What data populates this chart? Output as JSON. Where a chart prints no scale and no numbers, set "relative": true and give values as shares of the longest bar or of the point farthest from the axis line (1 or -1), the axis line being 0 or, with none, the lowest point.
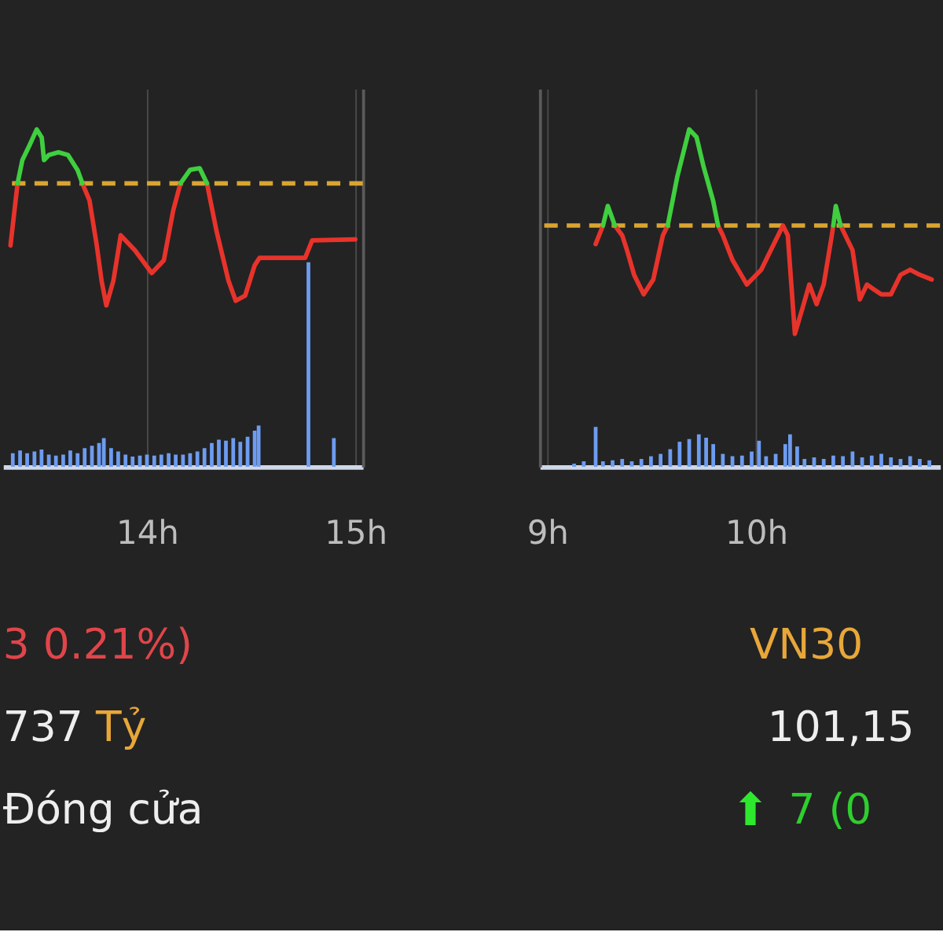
{
  "chart_data": [
    {
      "type": "line",
      "relative": true,
      "grid": "x",
      "tick_labels": "x",
      "x": [
        13.345,
        13.379,
        13.402,
        13.437,
        13.471,
        13.495,
        13.506,
        13.529,
        13.575,
        13.621,
        13.667,
        13.69,
        13.724,
        13.759,
        13.782,
        13.805,
        13.839,
        13.874,
        13.943,
        14.023,
        14.081,
        14.126,
        14.161,
        14.207,
        14.253,
        14.288,
        14.333,
        14.391,
        14.426,
        14.471,
        14.517,
        14.54,
        14.759,
        14.793,
        15.0
      ],
      "xlim": [
        13.345,
        15.0
      ],
      "xticks": [
        {
          "value": 14,
          "label": "14h"
        },
        {
          "value": 15,
          "label": "15h"
        }
      ],
      "series": [
        {
          "color": "#e8332b",
          "values": [
            0.656,
            0.84,
            null,
            null,
            null,
            null,
            null,
            null,
            null,
            null,
            null,
            0.84,
            0.79,
            0.656,
            0.552,
            0.478,
            0.552,
            0.686,
            0.641,
            0.574,
            0.612,
            0.76,
            0.84,
            null,
            null,
            0.84,
            0.701,
            0.552,
            0.492,
            0.507,
            0.597,
            0.619,
            0.619,
            0.671,
            0.674
          ]
        },
        {
          "color": "#3fcf3f",
          "values": [
            null,
            0.84,
            0.909,
            0.954,
            1.0,
            0.976,
            0.909,
            0.924,
            0.932,
            0.924,
            0.879,
            0.84,
            null,
            null,
            null,
            null,
            null,
            null,
            null,
            null,
            null,
            null,
            0.84,
            0.88,
            0.885,
            0.84,
            null,
            null,
            null,
            null,
            null,
            null,
            null,
            null,
            null
          ]
        },
        {
          "type": "bar",
          "color": "#6d9cf0",
          "x": [
            13.356,
            13.391,
            13.425,
            13.46,
            13.494,
            13.529,
            13.563,
            13.598,
            13.632,
            13.667,
            13.701,
            13.736,
            13.77,
            13.793,
            13.828,
            13.862,
            13.897,
            13.931,
            13.966,
            14.0,
            14.035,
            14.069,
            14.104,
            14.138,
            14.173,
            14.207,
            14.242,
            14.276,
            14.311,
            14.345,
            14.379,
            14.414,
            14.448,
            14.483,
            14.517,
            14.536,
            14.775,
            14.897
          ],
          "values": [
            0.04,
            0.048,
            0.04,
            0.045,
            0.051,
            0.036,
            0.033,
            0.036,
            0.048,
            0.04,
            0.055,
            0.062,
            0.07,
            0.085,
            0.055,
            0.045,
            0.036,
            0.03,
            0.033,
            0.036,
            0.033,
            0.036,
            0.04,
            0.036,
            0.036,
            0.04,
            0.045,
            0.055,
            0.07,
            0.08,
            0.077,
            0.085,
            0.074,
            0.089,
            0.107,
            0.122,
            0.606,
            0.085
          ]
        }
      ],
      "ref_lines": [
        {
          "axis": "y",
          "value": 0.84,
          "color": "#d9a431",
          "line_style": "dashed"
        }
      ],
      "annotations": [
        "3 0.21%)",
        "737",
        "Tỷ",
        "Đóng cửa"
      ]
    },
    {
      "type": "line",
      "relative": true,
      "grid": "x",
      "tick_labels": "x",
      "x": [
        9.232,
        9.267,
        9.29,
        9.324,
        9.359,
        9.382,
        9.416,
        9.462,
        9.508,
        9.554,
        9.577,
        9.623,
        9.68,
        9.715,
        9.749,
        9.795,
        9.818,
        9.841,
        9.887,
        9.956,
        10.025,
        10.071,
        10.129,
        10.152,
        10.186,
        10.221,
        10.255,
        10.29,
        10.324,
        10.359,
        10.37,
        10.382,
        10.405,
        10.439,
        10.462,
        10.497,
        10.531,
        10.566,
        10.6,
        10.646,
        10.692,
        10.738,
        10.784,
        10.841
      ],
      "xlim": [
        9,
        10.845
      ],
      "xticks": [
        {
          "value": 9,
          "label": "9h"
        },
        {
          "value": 10,
          "label": "10h"
        }
      ],
      "series": [
        {
          "color": "#e8332b",
          "values": [
            0.66,
            0.715,
            null,
            0.715,
            0.686,
            0.642,
            0.569,
            0.511,
            0.555,
            0.686,
            0.715,
            null,
            null,
            null,
            null,
            null,
            0.715,
            0.686,
            0.613,
            0.54,
            0.584,
            0.642,
            0.715,
            0.686,
            0.394,
            0.467,
            0.54,
            0.482,
            0.54,
            0.671,
            0.715,
            null,
            0.715,
            0.671,
            0.642,
            0.496,
            0.54,
            0.525,
            0.511,
            0.511,
            0.569,
            0.584,
            0.569,
            0.555
          ]
        },
        {
          "color": "#3fcf3f",
          "values": [
            null,
            0.715,
            0.773,
            0.715,
            null,
            null,
            null,
            null,
            null,
            null,
            0.715,
            0.86,
            1.0,
            0.977,
            0.889,
            0.787,
            0.715,
            null,
            null,
            null,
            null,
            null,
            null,
            null,
            null,
            null,
            null,
            null,
            null,
            null,
            0.715,
            0.773,
            0.715,
            null,
            null,
            null,
            null,
            null,
            null,
            null,
            null,
            null,
            null,
            null
          ]
        },
        {
          "type": "bar",
          "color": "#6d9cf0",
          "x": [
            9.129,
            9.175,
            9.232,
            9.267,
            9.313,
            9.359,
            9.405,
            9.451,
            9.497,
            9.543,
            9.589,
            9.634,
            9.68,
            9.726,
            9.761,
            9.795,
            9.841,
            9.887,
            9.933,
            9.979,
            10.014,
            10.048,
            10.094,
            10.14,
            10.163,
            10.197,
            10.232,
            10.278,
            10.324,
            10.37,
            10.416,
            10.462,
            10.508,
            10.554,
            10.6,
            10.646,
            10.692,
            10.738,
            10.784,
            10.83
          ],
          "values": [
            0.009,
            0.016,
            0.118,
            0.016,
            0.019,
            0.023,
            0.016,
            0.023,
            0.031,
            0.038,
            0.052,
            0.074,
            0.082,
            0.096,
            0.086,
            0.067,
            0.038,
            0.031,
            0.033,
            0.045,
            0.077,
            0.031,
            0.038,
            0.067,
            0.096,
            0.06,
            0.023,
            0.028,
            0.023,
            0.033,
            0.031,
            0.045,
            0.028,
            0.033,
            0.038,
            0.028,
            0.023,
            0.031,
            0.023,
            0.019
          ]
        }
      ],
      "ref_lines": [
        {
          "axis": "y",
          "value": 0.715,
          "color": "#d9a431",
          "line_style": "dashed"
        }
      ],
      "annotations": [
        "VN30",
        "101,15",
        "⬆",
        "7 (0"
      ]
    }
  ]
}
